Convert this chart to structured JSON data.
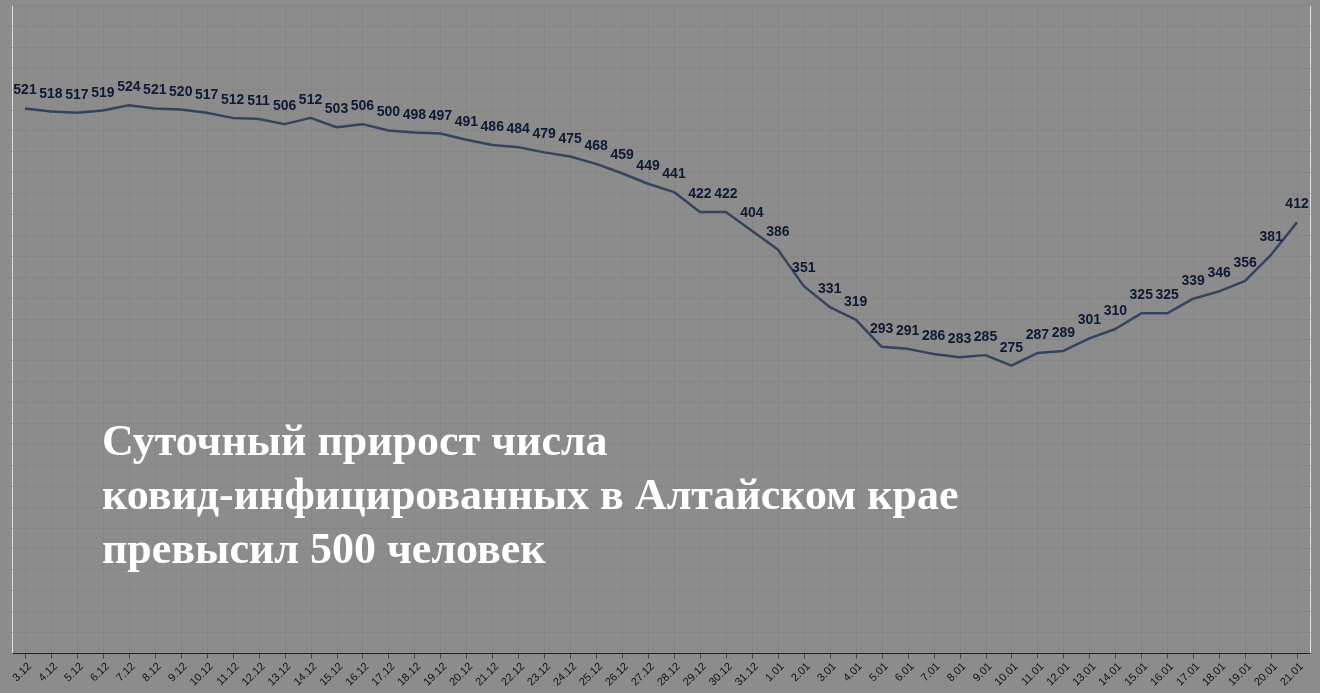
{
  "chart_data": {
    "type": "line",
    "title": "Суточный прирост числа\nковид-инфицированных в Алтайском крае\nпревысил 500 человек",
    "categories": [
      "3.12",
      "4.12",
      "5.12",
      "6.12",
      "7.12",
      "8.12",
      "9.12",
      "10.12",
      "11.12",
      "12.12",
      "13.12",
      "14.12",
      "15.12",
      "16.12",
      "17.12",
      "18.12",
      "19.12",
      "20.12",
      "21.12",
      "22.12",
      "23.12",
      "24.12",
      "25.12",
      "26.12",
      "27.12",
      "28.12",
      "29.12",
      "30.12",
      "31.12",
      "1.01",
      "2.01",
      "3.01",
      "4.01",
      "5.01",
      "6.01",
      "7.01",
      "8.01",
      "9.01",
      "10.01",
      "11.01",
      "12.01",
      "13.01",
      "14.01",
      "15.01",
      "16.01",
      "17.01",
      "18.01",
      "19.01",
      "20.01",
      "21.01"
    ],
    "series": [
      {
        "color": "#34445f",
        "values": [
          521,
          518,
          517,
          519,
          524,
          521,
          520,
          517,
          512,
          511,
          506,
          512,
          503,
          506,
          500,
          498,
          497,
          491,
          486,
          484,
          479,
          475,
          468,
          459,
          449,
          441,
          422,
          422,
          404,
          386,
          351,
          331,
          319,
          293,
          291,
          286,
          283,
          285,
          275,
          287,
          289,
          301,
          310,
          325,
          325,
          339,
          346,
          356,
          381,
          412
        ]
      }
    ],
    "ylim": [
      0,
      620
    ],
    "tick_labels": "x",
    "grid": true,
    "data_labels": true,
    "legend": false,
    "marker": "none",
    "line_style": "solid"
  }
}
